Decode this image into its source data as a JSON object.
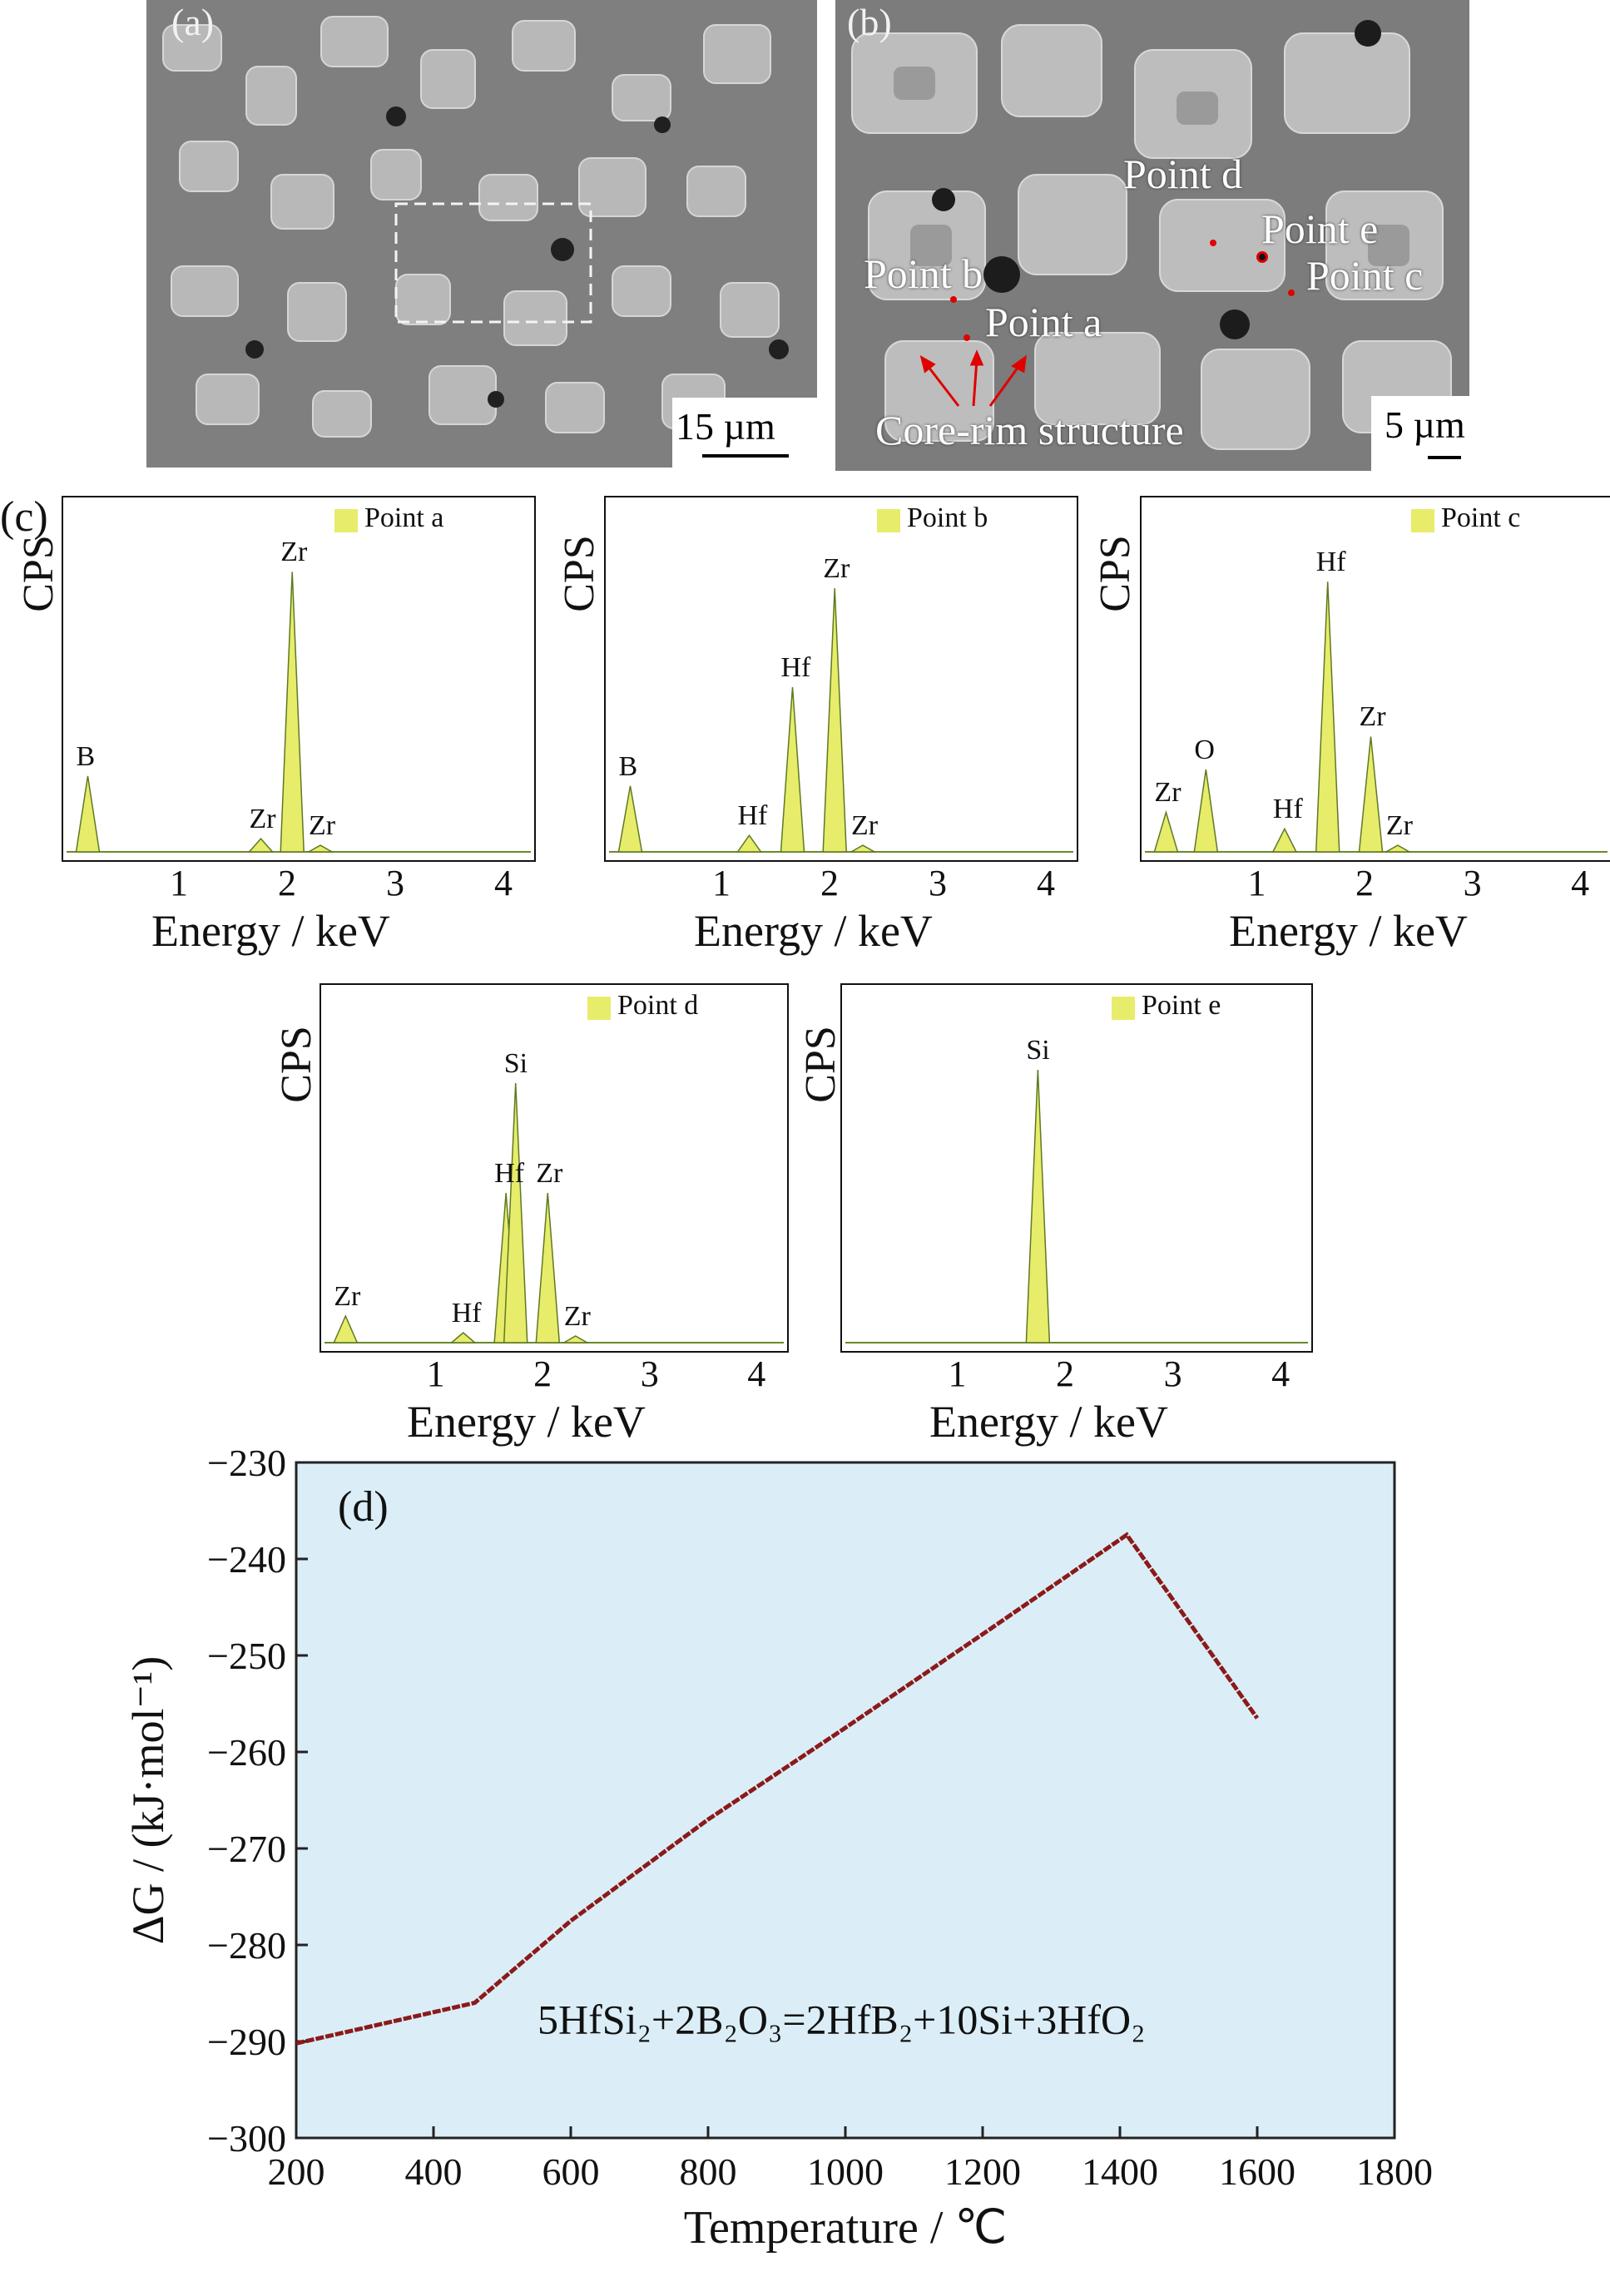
{
  "panel_a": {
    "letter": "(a)",
    "scale_bar": "15 µm"
  },
  "panel_b": {
    "letter": "(b)",
    "scale_bar": "5 µm",
    "labels": {
      "point_a": "Point a",
      "point_b": "Point b",
      "point_c": "Point c",
      "point_d": "Point d",
      "point_e": "Point e",
      "core_rim": "Core-rim structure"
    }
  },
  "panel_c": {
    "letter": "(c)",
    "y_label": "CPS",
    "x_label": "Energy / keV",
    "x_ticks": [
      "1",
      "2",
      "3",
      "4"
    ],
    "spectra": [
      {
        "legend": "Point a",
        "peaks": [
          {
            "el": "B",
            "e": 0.15,
            "h": 0.23
          },
          {
            "el": "Zr",
            "e": 1.75,
            "h": 0.04
          },
          {
            "el": "Zr",
            "e": 2.04,
            "h": 0.85
          },
          {
            "el": "Zr",
            "e": 2.3,
            "h": 0.02
          }
        ]
      },
      {
        "legend": "Point b",
        "peaks": [
          {
            "el": "B",
            "e": 0.15,
            "h": 0.2
          },
          {
            "el": "Hf",
            "e": 1.25,
            "h": 0.05
          },
          {
            "el": "Hf",
            "e": 1.65,
            "h": 0.5
          },
          {
            "el": "Zr",
            "e": 2.04,
            "h": 0.8
          },
          {
            "el": "Zr",
            "e": 2.3,
            "h": 0.02
          }
        ]
      },
      {
        "legend": "Point c",
        "peaks": [
          {
            "el": "Zr",
            "e": 0.15,
            "h": 0.12
          },
          {
            "el": "O",
            "e": 0.52,
            "h": 0.25
          },
          {
            "el": "Hf",
            "e": 1.25,
            "h": 0.07
          },
          {
            "el": "Hf",
            "e": 1.65,
            "h": 0.82
          },
          {
            "el": "Zr",
            "e": 2.05,
            "h": 0.35
          },
          {
            "el": "Zr",
            "e": 2.3,
            "h": 0.02
          }
        ]
      },
      {
        "legend": "Point d",
        "peaks": [
          {
            "el": "Zr",
            "e": 0.15,
            "h": 0.08
          },
          {
            "el": "Hf",
            "e": 1.25,
            "h": 0.03
          },
          {
            "el": "Hf",
            "e": 1.65,
            "h": 0.45
          },
          {
            "el": "Si",
            "e": 1.74,
            "h": 0.78
          },
          {
            "el": "Zr",
            "e": 2.04,
            "h": 0.45
          },
          {
            "el": "Zr",
            "e": 2.3,
            "h": 0.02
          }
        ]
      },
      {
        "legend": "Point e",
        "peaks": [
          {
            "el": "Si",
            "e": 1.74,
            "h": 0.82
          }
        ]
      }
    ]
  },
  "chart_data": {
    "type": "line",
    "panel_letter": "(d)",
    "xlabel": "Temperature / ℃",
    "ylabel": "ΔG / (kJ·mol⁻¹)",
    "xlim": [
      200,
      1800
    ],
    "ylim": [
      -300,
      -230
    ],
    "x_ticks": [
      "200",
      "400",
      "600",
      "800",
      "1000",
      "1200",
      "1400",
      "1600",
      "1800"
    ],
    "y_ticks": [
      "−230",
      "−240",
      "−250",
      "−260",
      "−270",
      "−280",
      "−290",
      "−300"
    ],
    "annotation": "5HfSi₂+2B₂O₃=2HfB₂+10Si+3HfO₂",
    "series": [
      {
        "x": [
          200,
          460,
          600,
          800,
          1000,
          1200,
          1410,
          1600
        ],
        "y": [
          -290.2,
          -286.0,
          -277.5,
          -267.0,
          -257.5,
          -247.8,
          -237.5,
          -256.5
        ]
      }
    ],
    "colors": {
      "background": "#dbeef7",
      "line": "#8b1a1a"
    }
  }
}
